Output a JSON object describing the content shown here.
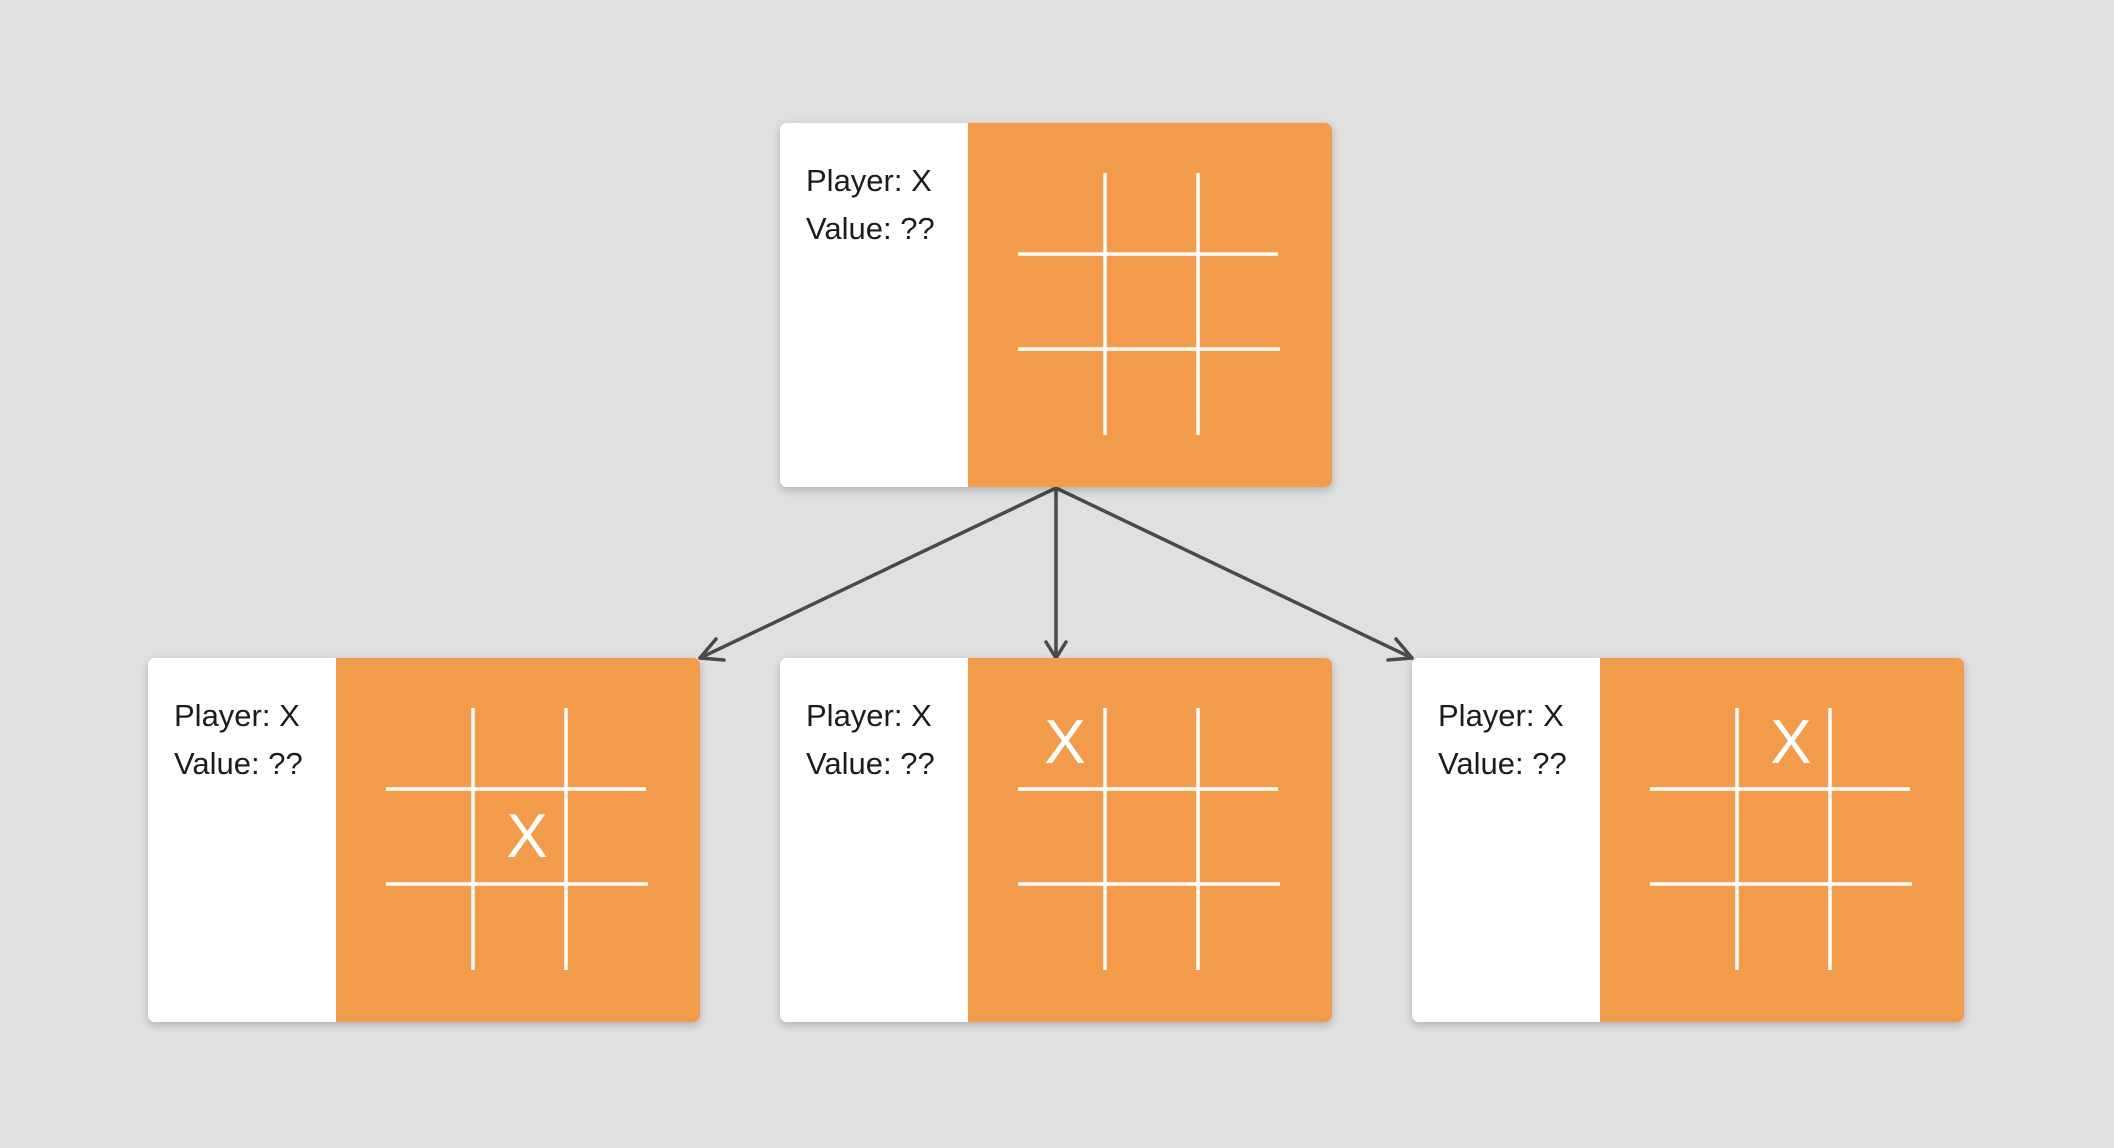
{
  "diagram": {
    "colors": {
      "background": "#e0e0e0",
      "card": "#ffffff",
      "board": "#f29b4b",
      "grid_line": "#ffffff",
      "mark": "#ffffff",
      "arrow": "#4a4a4a",
      "text": "#1c1c1c"
    },
    "root": {
      "player_text": "Player: X",
      "value_text": "Value: ??",
      "cells": [
        "",
        "",
        "",
        "",
        "",
        "",
        "",
        "",
        ""
      ]
    },
    "children": [
      {
        "player_text": "Player: X",
        "value_text": "Value: ??",
        "cells": [
          "",
          "",
          "",
          "",
          "X",
          "",
          "",
          "",
          ""
        ]
      },
      {
        "player_text": "Player: X",
        "value_text": "Value: ??",
        "cells": [
          "X",
          "",
          "",
          "",
          "",
          "",
          "",
          "",
          ""
        ]
      },
      {
        "player_text": "Player: X",
        "value_text": "Value: ??",
        "cells": [
          "",
          "X",
          "",
          "",
          "",
          "",
          "",
          "",
          ""
        ]
      }
    ]
  }
}
